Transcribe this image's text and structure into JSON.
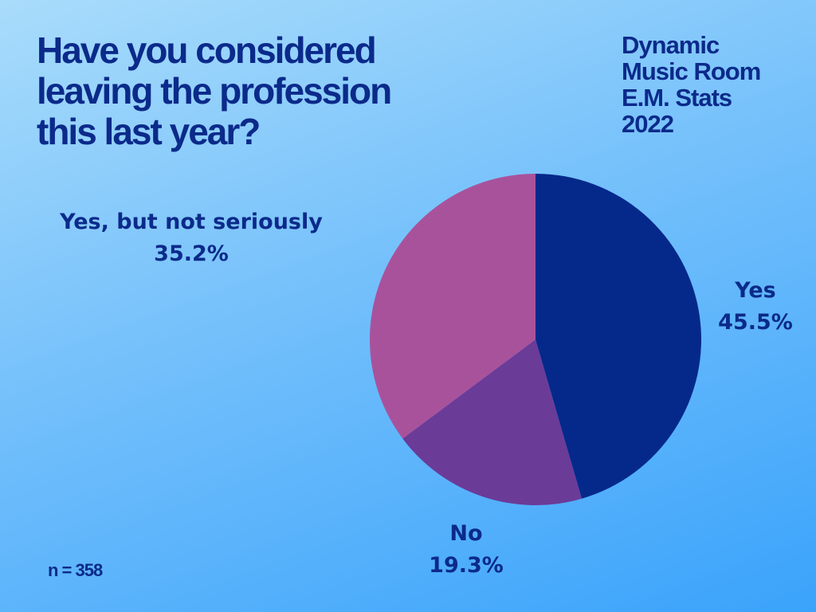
{
  "title_lines": [
    "Have you considered",
    "leaving the profession",
    "this last year?"
  ],
  "brand_lines": [
    "Dynamic",
    "Music Room",
    "E.M. Stats",
    "2022"
  ],
  "sample_size": "n = 358",
  "chart_data": {
    "type": "pie",
    "title": "Have you considered leaving the profession this last year?",
    "slices": [
      {
        "label": "Yes",
        "value": 45.5,
        "value_text": "45.5%",
        "color": "#05298a"
      },
      {
        "label": "No",
        "value": 19.3,
        "value_text": "19.3%",
        "color": "#6b3b98"
      },
      {
        "label": "Yes, but not seriously",
        "value": 35.2,
        "value_text": "35.2%",
        "color": "#a9529c"
      }
    ],
    "start": "12 o'clock",
    "direction": "clockwise",
    "legend": "none"
  },
  "colors": {
    "text": "#0b2a8a",
    "background_top": "#a9dcfb",
    "background_bottom": "#3aa3fb"
  }
}
